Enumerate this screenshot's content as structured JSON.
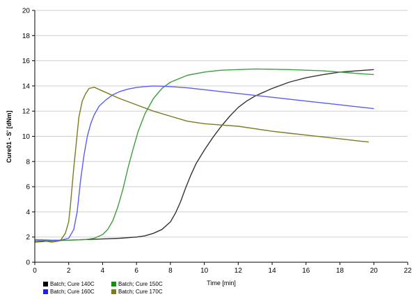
{
  "chart_data": {
    "type": "line",
    "title": "",
    "xlabel": "Time [min]",
    "ylabel": "Cure01 - S' [dNm]",
    "xlim": [
      0,
      22
    ],
    "ylim": [
      0,
      20
    ],
    "xticks": [
      "0",
      "2",
      "4",
      "6",
      "8",
      "10",
      "12",
      "14",
      "16",
      "18",
      "20",
      "22"
    ],
    "yticks": [
      "0",
      "2",
      "4",
      "6",
      "8",
      "10",
      "12",
      "14",
      "16",
      "18",
      "20"
    ],
    "grid": "horizontal",
    "legend_position": "bottom-left",
    "series": [
      {
        "name": "Batch; Cure 140C",
        "color": "#333333",
        "x": [
          0,
          1,
          2,
          3,
          4,
          5,
          6,
          6.5,
          7,
          7.5,
          8,
          8.3,
          8.6,
          8.9,
          9.2,
          9.5,
          10,
          10.5,
          11,
          11.5,
          12,
          12.5,
          13,
          14,
          15,
          16,
          17,
          18,
          19,
          20
        ],
        "y": [
          1.6,
          1.7,
          1.75,
          1.8,
          1.85,
          1.9,
          2.0,
          2.1,
          2.3,
          2.6,
          3.2,
          3.9,
          4.8,
          5.9,
          6.9,
          7.8,
          8.9,
          9.9,
          10.8,
          11.6,
          12.3,
          12.8,
          13.2,
          13.8,
          14.3,
          14.65,
          14.9,
          15.1,
          15.2,
          15.3
        ]
      },
      {
        "name": "Batch; Cure 150C",
        "color": "#3a9e3a",
        "x": [
          0,
          1,
          2,
          3,
          3.5,
          4,
          4.3,
          4.6,
          4.9,
          5.2,
          5.5,
          5.8,
          6.1,
          6.5,
          7,
          7.5,
          8,
          9,
          10,
          11,
          12,
          13,
          14,
          15,
          16,
          17,
          18,
          19,
          20
        ],
        "y": [
          1.8,
          1.75,
          1.75,
          1.8,
          1.9,
          2.2,
          2.6,
          3.3,
          4.4,
          5.8,
          7.5,
          9.0,
          10.4,
          11.8,
          13.0,
          13.8,
          14.3,
          14.85,
          15.1,
          15.25,
          15.3,
          15.35,
          15.33,
          15.3,
          15.25,
          15.2,
          15.1,
          15.0,
          14.9
        ]
      },
      {
        "name": "Batch; Cure 160C",
        "color": "#5a5aff",
        "x": [
          0,
          1,
          1.5,
          2,
          2.3,
          2.5,
          2.7,
          2.9,
          3.1,
          3.3,
          3.5,
          3.8,
          4.2,
          4.6,
          5,
          5.5,
          6,
          6.5,
          7,
          7.5,
          8,
          9,
          10,
          12,
          14,
          16,
          18,
          20
        ],
        "y": [
          1.7,
          1.7,
          1.75,
          1.9,
          2.6,
          4.0,
          6.5,
          8.5,
          10.0,
          11.0,
          11.7,
          12.4,
          12.9,
          13.3,
          13.55,
          13.75,
          13.88,
          13.95,
          14.0,
          13.98,
          13.95,
          13.85,
          13.7,
          13.4,
          13.1,
          12.8,
          12.5,
          12.2
        ]
      },
      {
        "name": "Batch; Cure 170C",
        "color": "#7a7a1e",
        "x": [
          0,
          0.5,
          1,
          1.5,
          1.8,
          2.0,
          2.1,
          2.2,
          2.3,
          2.45,
          2.6,
          2.8,
          3.0,
          3.2,
          3.5,
          4.0,
          5,
          6,
          7,
          8,
          9,
          10,
          11,
          12,
          13,
          14,
          15,
          16,
          17,
          18,
          19,
          19.7
        ],
        "y": [
          1.6,
          1.7,
          1.6,
          1.7,
          2.3,
          3.2,
          4.5,
          6.0,
          7.5,
          9.5,
          11.5,
          12.8,
          13.4,
          13.8,
          13.9,
          13.6,
          13.0,
          12.5,
          12.0,
          11.6,
          11.2,
          11.0,
          10.9,
          10.8,
          10.6,
          10.4,
          10.25,
          10.1,
          9.95,
          9.8,
          9.65,
          9.55
        ]
      }
    ]
  }
}
